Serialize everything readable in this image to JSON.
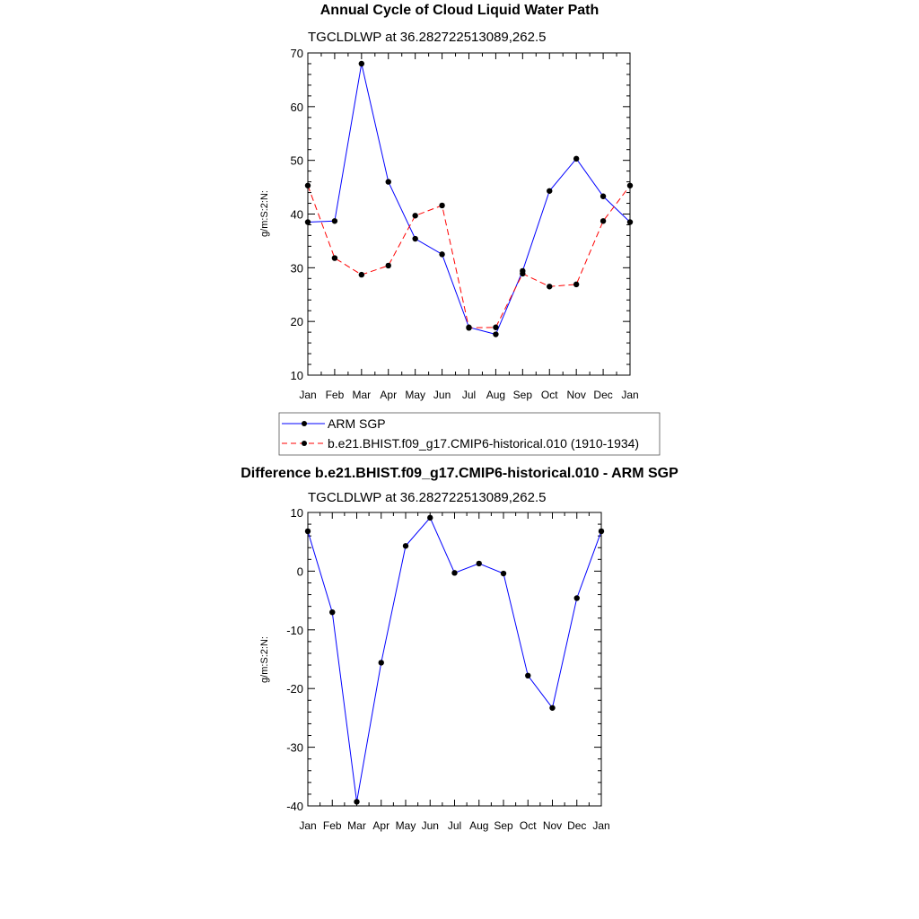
{
  "chart_data": [
    {
      "type": "line",
      "title": "Annual Cycle of Cloud Liquid Water Path",
      "subtitle": "TGCLDLWP at 36.282722513089,262.5",
      "xlabel": "",
      "ylabel": "g/m:S:2:N:",
      "categories": [
        "Jan",
        "Feb",
        "Mar",
        "Apr",
        "May",
        "Jun",
        "Jul",
        "Aug",
        "Sep",
        "Oct",
        "Nov",
        "Dec",
        "Jan"
      ],
      "ylim": [
        10,
        70
      ],
      "yticks": [
        "10",
        "20",
        "30",
        "40",
        "50",
        "60",
        "70"
      ],
      "legend_position": "bottom",
      "series": [
        {
          "name": "ARM SGP",
          "color": "#0000ff",
          "style": "solid",
          "values": [
            38.5,
            38.7,
            68.0,
            46.0,
            35.4,
            32.5,
            18.9,
            17.6,
            29.4,
            44.3,
            50.3,
            43.3,
            38.5
          ]
        },
        {
          "name": "b.e21.BHIST.f09_g17.CMIP6-historical.010 (1910-1934)",
          "color": "#ff0000",
          "style": "dashed",
          "values": [
            45.3,
            31.8,
            28.7,
            30.4,
            39.7,
            41.6,
            18.8,
            18.9,
            28.9,
            26.5,
            26.9,
            38.7,
            45.3
          ]
        }
      ]
    },
    {
      "type": "line",
      "title": "Difference b.e21.BHIST.f09_g17.CMIP6-historical.010 - ARM SGP",
      "subtitle": "TGCLDLWP at 36.282722513089,262.5",
      "xlabel": "",
      "ylabel": "g/m:S:2:N:",
      "categories": [
        "Jan",
        "Feb",
        "Mar",
        "Apr",
        "May",
        "Jun",
        "Jul",
        "Aug",
        "Sep",
        "Oct",
        "Nov",
        "Dec",
        "Jan"
      ],
      "ylim": [
        -40,
        10
      ],
      "yticks": [
        "-40",
        "-30",
        "-20",
        "-10",
        "0",
        "10"
      ],
      "series": [
        {
          "name": "Difference",
          "color": "#0000ff",
          "style": "solid",
          "values": [
            6.8,
            -7.0,
            -39.3,
            -15.6,
            4.3,
            9.1,
            -0.3,
            1.3,
            -0.4,
            -17.8,
            -23.3,
            -4.6,
            6.8
          ]
        }
      ]
    }
  ]
}
